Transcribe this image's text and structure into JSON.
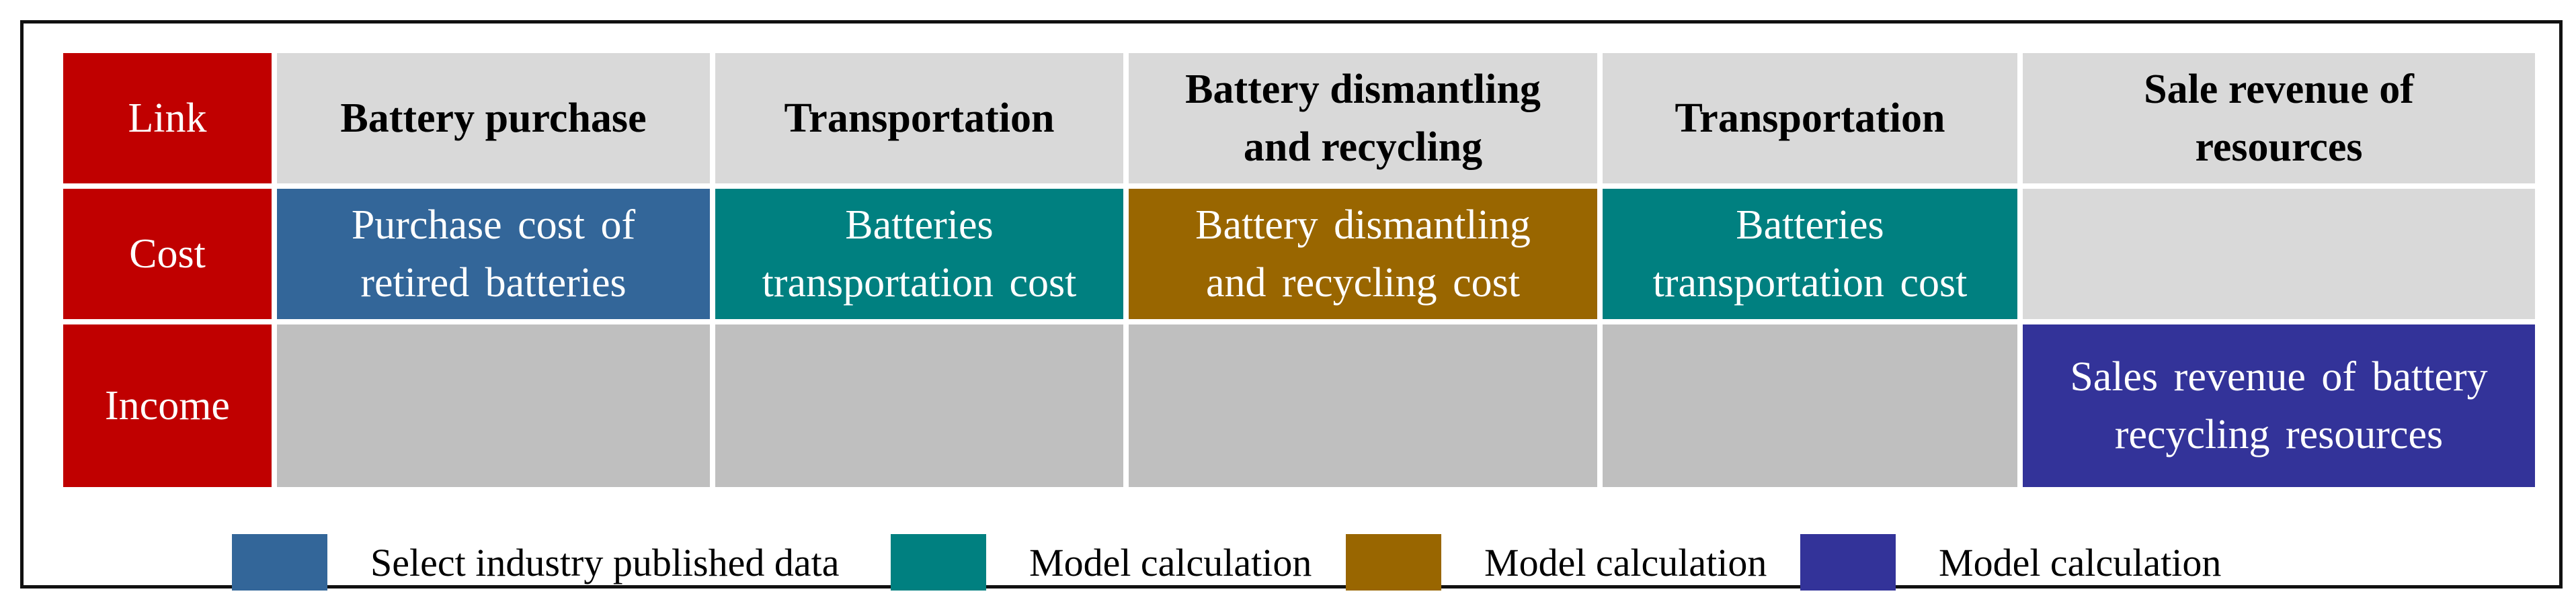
{
  "rows": {
    "link": "Link",
    "cost": "Cost",
    "income": "Income"
  },
  "headers": [
    {
      "line1": "Battery purchase",
      "line2": ""
    },
    {
      "line1": "Transportation",
      "line2": ""
    },
    {
      "line1": "Battery dismantling",
      "line2": "and recycling"
    },
    {
      "line1": "Transportation",
      "line2": ""
    },
    {
      "line1": "Sale revenue of",
      "line2": "resources"
    }
  ],
  "cost": [
    {
      "line1": "Purchase cost of",
      "line2": "retired batteries",
      "color": "#336699"
    },
    {
      "line1": "Batteries",
      "line2": "transportation cost",
      "color": "#008080"
    },
    {
      "line1": "Battery dismantling",
      "line2": "and recycling cost",
      "color": "#996600"
    },
    {
      "line1": "Batteries",
      "line2": "transportation cost",
      "color": "#008080"
    }
  ],
  "income": {
    "line1": "Sales revenue of battery",
    "line2": "recycling resources",
    "color": "#333399"
  },
  "legend": [
    {
      "label": "Select industry published data",
      "color": "#336699"
    },
    {
      "label": "Model calculation",
      "color": "#008080"
    },
    {
      "label": "Model calculation",
      "color": "#996600"
    },
    {
      "label": "Model calculation",
      "color": "#333399"
    }
  ]
}
